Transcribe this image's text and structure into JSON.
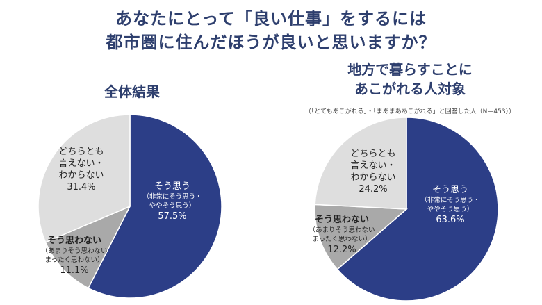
{
  "title": {
    "line1": "あなたにとって「良い仕事」をするには",
    "line2": "都市圏に住んだほうが良いと思いますか？"
  },
  "chart_data": [
    {
      "type": "pie",
      "title": "全体結果",
      "subtitle": "",
      "slices": [
        {
          "label_lines": [
            "そう思う"
          ],
          "sub_lines": [
            "（非常にそう思う・",
            "ややそう思う）"
          ],
          "value": 57.5,
          "display": "57.5%",
          "color": "#2c3e87"
        },
        {
          "label_lines": [
            "そう思わない"
          ],
          "sub_lines": [
            "（あまりそう思わない",
            "まったく思わない）"
          ],
          "value": 11.1,
          "display": "11.1%",
          "color": "#a9a9a9"
        },
        {
          "label_lines": [
            "どちらとも",
            "言えない・",
            "わからない"
          ],
          "sub_lines": [],
          "value": 31.4,
          "display": "31.4%",
          "color": "#dedede"
        }
      ]
    },
    {
      "type": "pie",
      "title": "地方で暮らすことに\nあこがれる人対象",
      "subtitle": "（「とてもあこがれる」・「まあまああこがれる」と回答した人（N＝453））",
      "slices": [
        {
          "label_lines": [
            "そう思う"
          ],
          "sub_lines": [
            "（非常にそう思う・",
            "ややそう思う）"
          ],
          "value": 63.6,
          "display": "63.6%",
          "color": "#2c3e87"
        },
        {
          "label_lines": [
            "そう思わない"
          ],
          "sub_lines": [
            "（あまりそう思わない",
            "まったく思わない）"
          ],
          "value": 12.2,
          "display": "12.2%",
          "color": "#a9a9a9"
        },
        {
          "label_lines": [
            "どちらとも",
            "言えない・",
            "わからない"
          ],
          "sub_lines": [],
          "value": 24.2,
          "display": "24.2%",
          "color": "#dedede"
        }
      ]
    }
  ]
}
